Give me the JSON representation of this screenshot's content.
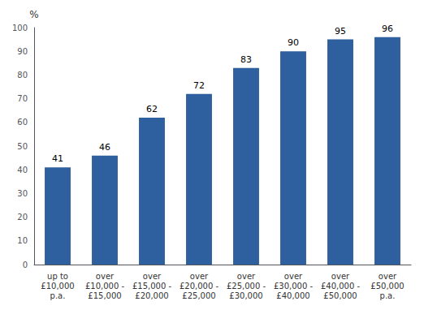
{
  "chart_data": {
    "type": "bar",
    "categories": [
      "up to\n£10,000\np.a.",
      "over\n£10,000 -\n£15,000",
      "over\n£15,000 -\n£20,000",
      "over\n£20,000 -\n£25,000",
      "over\n£25,000 -\n£30,000",
      "over\n£30,000 -\n£40,000",
      "over\n£40,000 -\n£50,000",
      "over\n£50,000\np.a."
    ],
    "values": [
      41,
      46,
      62,
      72,
      83,
      90,
      95,
      96
    ],
    "color": "#2e5f9e",
    "ylabel": "%",
    "ylim": [
      0,
      100
    ],
    "yticks": [
      0,
      10,
      20,
      30,
      40,
      50,
      60,
      70,
      80,
      90,
      100
    ],
    "grid": false,
    "data_labels": true
  }
}
